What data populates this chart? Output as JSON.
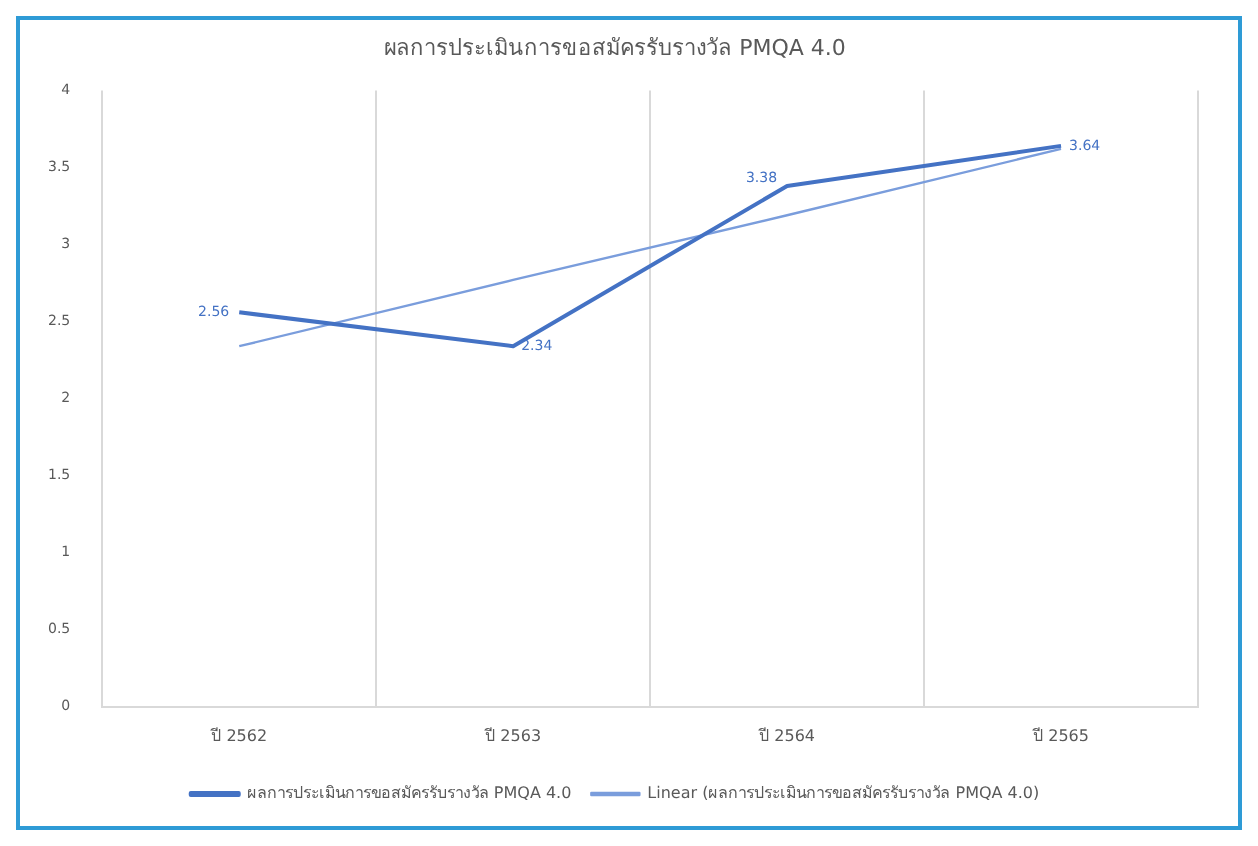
{
  "chart_data": {
    "type": "line",
    "title": "ผลการประเมินการขอสมัครรับรางวัล PMQA 4.0",
    "categories": [
      "ปี 2562",
      "ปี 2563",
      "ปี 2564",
      "ปี 2565"
    ],
    "series": [
      {
        "name": "ผลการประเมินการขอสมัครรับรางวัล PMQA 4.0",
        "color": "#4472c4",
        "values": [
          2.56,
          2.34,
          3.38,
          3.64
        ],
        "value_labels": [
          "2.56",
          "2.34",
          "3.38",
          "3.64"
        ]
      },
      {
        "name": "Linear (ผลการประเมินการขอสมัครรับรางวัล PMQA 4.0)",
        "type": "line",
        "color": "#7a9ddc",
        "values": [
          2.34,
          2.77,
          3.19,
          3.62
        ]
      }
    ],
    "ylim": [
      0,
      4
    ],
    "yticks": [
      0,
      0.5,
      1,
      1.5,
      2,
      2.5,
      3,
      3.5,
      4
    ],
    "grid": "x",
    "legend": "bottom",
    "marker": "none",
    "line_style": "solid"
  }
}
